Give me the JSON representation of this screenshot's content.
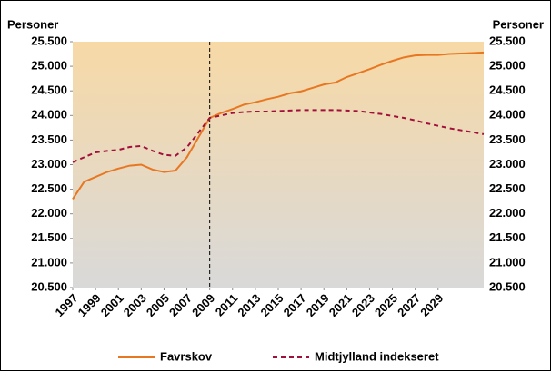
{
  "chart_data": {
    "type": "line",
    "y_label": "Personer",
    "y2_label": "Personer",
    "x": [
      1997,
      1998,
      1999,
      2000,
      2001,
      2002,
      2003,
      2004,
      2005,
      2006,
      2007,
      2008,
      2009,
      2010,
      2011,
      2012,
      2013,
      2014,
      2015,
      2016,
      2017,
      2018,
      2019,
      2020,
      2021,
      2022,
      2023,
      2024,
      2025,
      2026,
      2027,
      2028,
      2029,
      2030,
      2031,
      2032,
      2033
    ],
    "xlim": [
      1997,
      2033
    ],
    "xticks": [
      1997,
      1999,
      2001,
      2003,
      2005,
      2007,
      2009,
      2011,
      2013,
      2015,
      2017,
      2019,
      2021,
      2023,
      2025,
      2027,
      2029
    ],
    "vline": 2009,
    "ylim": [
      20500,
      25500
    ],
    "yticks": [
      {
        "value": 20500,
        "label": "20.500"
      },
      {
        "value": 21000,
        "label": "21.000"
      },
      {
        "value": 21500,
        "label": "21.500"
      },
      {
        "value": 22000,
        "label": "22.000"
      },
      {
        "value": 22500,
        "label": "22.500"
      },
      {
        "value": 23000,
        "label": "23.000"
      },
      {
        "value": 23500,
        "label": "23.500"
      },
      {
        "value": 24000,
        "label": "24.000"
      },
      {
        "value": 24500,
        "label": "24.500"
      },
      {
        "value": 25000,
        "label": "25.000"
      },
      {
        "value": 25500,
        "label": "25.500"
      }
    ],
    "series": [
      {
        "name": "Favrskov",
        "color": "#e87722",
        "dash": false,
        "values": [
          22300,
          22650,
          22750,
          22850,
          22920,
          22980,
          23000,
          22900,
          22850,
          22880,
          23150,
          23550,
          23950,
          24050,
          24130,
          24220,
          24270,
          24330,
          24380,
          24450,
          24490,
          24560,
          24630,
          24670,
          24780,
          24860,
          24940,
          25030,
          25110,
          25180,
          25220,
          25230,
          25230,
          25250,
          25260,
          25270,
          25280
        ]
      },
      {
        "name": "Midtjylland indekseret",
        "color": "#a0103a",
        "dash": true,
        "values": [
          23050,
          23150,
          23250,
          23280,
          23300,
          23360,
          23380,
          23280,
          23200,
          23180,
          23350,
          23650,
          23950,
          24000,
          24050,
          24070,
          24080,
          24080,
          24090,
          24100,
          24110,
          24110,
          24110,
          24110,
          24100,
          24090,
          24060,
          24030,
          23990,
          23950,
          23900,
          23840,
          23790,
          23740,
          23700,
          23660,
          23620
        ]
      }
    ]
  }
}
